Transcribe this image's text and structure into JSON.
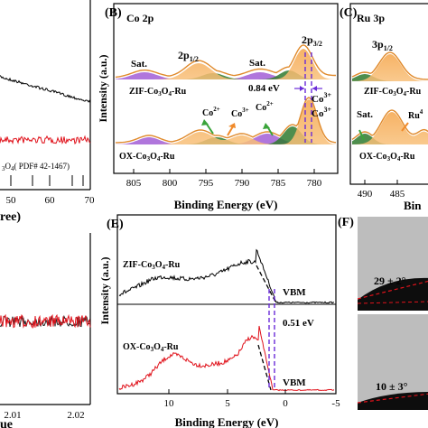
{
  "chart_data": [
    {
      "panel": "A",
      "type": "line",
      "visible_partial": true,
      "series": [
        {
          "name": "",
          "color": "#000000",
          "x": [
            40,
            45,
            50,
            55,
            60,
            65,
            70
          ],
          "y": [
            0.92,
            0.86,
            0.8,
            0.73,
            0.66,
            0.59,
            0.52
          ]
        },
        {
          "name": "",
          "color": "#e0121b",
          "x": [
            40,
            45,
            50,
            55,
            60,
            65,
            70
          ],
          "y": [
            0.3,
            0.3,
            0.3,
            0.3,
            0.3,
            0.3,
            0.3
          ]
        }
      ],
      "reference_label": "3O4 ( PDF# 42-1467)",
      "xticks": [
        "50",
        "60",
        "70"
      ],
      "xlabel": "ree)",
      "xlim": [
        40,
        70
      ]
    },
    {
      "panel": "B",
      "type": "line",
      "subtitle": "Co 2p",
      "xlabel": "Binding Energy (eV)",
      "ylabel": "Intensity (a.u.)",
      "xlim": [
        808,
        776
      ],
      "xticks": [
        "805",
        "800",
        "795",
        "790",
        "785",
        "780"
      ],
      "curves": [
        "ZIF-Co3O4-Ru",
        "OX-Co3O4-Ru"
      ],
      "annotations": [
        "Sat.",
        "2p 1/2",
        "Sat.",
        "2p 3/2",
        "0.84 eV",
        "Co3+",
        "Co2+",
        "Co3+",
        "Co2+",
        "Co3+"
      ],
      "peaks": {
        "Co2p3/2_ZIF": 780.2,
        "Co2p3/2_OX": 781.0,
        "Co2p1/2": 795.5
      }
    },
    {
      "panel": "C",
      "type": "line",
      "subtitle": "Ru 3p",
      "xlabel": "Bin",
      "xticks": [
        "490",
        "485"
      ],
      "curves": [
        "ZIF-Co3O4-Ru",
        "OX-Co3O4-Ru"
      ],
      "annotations": [
        "3p 1/2",
        "Sat.",
        "Ru4"
      ]
    },
    {
      "panel": "D",
      "type": "line",
      "visible_partial": true,
      "xticks": [
        "2.01",
        "2.02"
      ],
      "xlabel": "ue"
    },
    {
      "panel": "E",
      "type": "line",
      "xlabel": "Binding Energy (eV)",
      "ylabel": "Intensity (a.u.)",
      "xlim": [
        12,
        -5
      ],
      "xticks": [
        "10",
        "5",
        "0",
        "-5"
      ],
      "curves": [
        "ZIF-Co3O4-Ru",
        "OX-Co3O4-Ru"
      ],
      "annotations": [
        "VBM",
        "VBM",
        "0.51 eV"
      ]
    },
    {
      "panel": "F",
      "type": "image",
      "annotations": [
        "29 ± 2°",
        "10 ± 3°"
      ]
    }
  ],
  "labels": {
    "panel_b": "(B)",
    "panel_c": "(C)",
    "panel_e": "(E)",
    "panel_f": "(F)",
    "co2p": "Co 2p",
    "ru3p": "Ru 3p",
    "sat1": "Sat.",
    "sat2": "Sat.",
    "sat3": "Sat.",
    "p12": "2p",
    "p12sub": "1/2",
    "p32": "2p",
    "p32sub": "3/2",
    "ru_p12": "3p",
    "ru_p12sub": "1/2",
    "ev084": "0.84 eV",
    "ev051": "0.51 eV",
    "co3a": "Co",
    "co2a": "Co",
    "co3b": "Co",
    "co2b": "Co",
    "co3c": "Co",
    "ru4": "Ru",
    "sup3": "3+",
    "sup2": "2+",
    "zif_b_pre": "ZIF-Co",
    "zif_b_mid": "O",
    "zif_b_post": "-Ru",
    "ox_b_pre": "OX-Co",
    "ox_b_mid": "O",
    "ox_b_post": "-Ru",
    "zif_c": "ZIF-Co",
    "ox_c": "OX-Co",
    "zif_e_pre": "ZIF-Co",
    "zif_e_mid": "O",
    "zif_e_post": "-Ru",
    "ox_e_pre": "OX-Co",
    "ox_e_mid": "O",
    "ox_e_post": "-Ru",
    "vbm1": "VBM",
    "vbm2": "VBM",
    "xlabel_b": "Binding Energy (eV)",
    "xlabel_e": "Binding Energy (eV)",
    "xlabel_c": "Bin",
    "xlabel_a": "ree)",
    "xlabel_d": "ue",
    "ylabel_b": "Intensity (a.u.)",
    "ylabel_e": "Intensity (a.u.)",
    "pdf": "( PDF# 42-1467)",
    "pdf_pre": "O",
    "angle1": "29 ± 2°",
    "angle2": "10 ± 3°",
    "sub3": "3",
    "sub4": "4"
  }
}
